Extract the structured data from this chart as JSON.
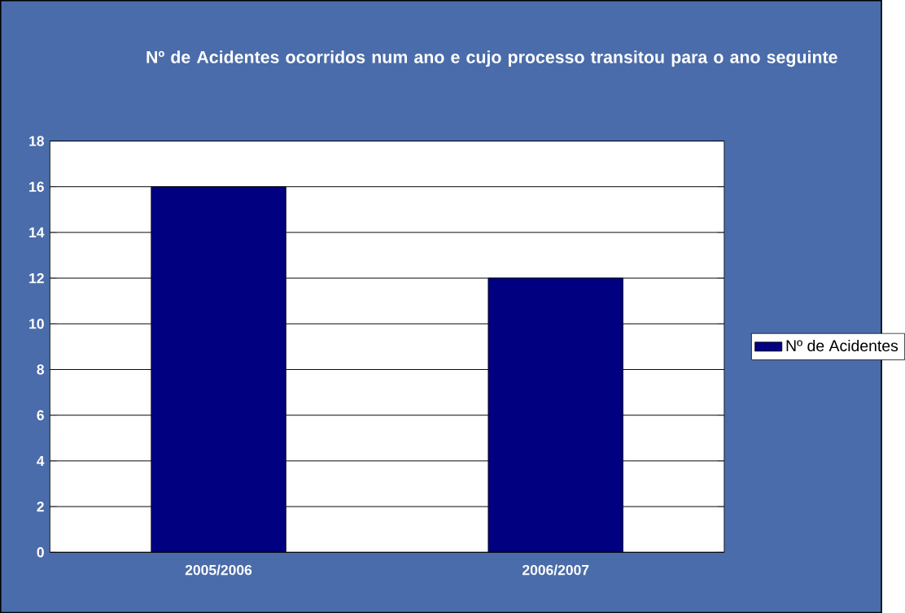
{
  "chart_data": {
    "type": "bar",
    "title": "Nº de Acidentes ocorridos num ano e cujo processo transitou para o ano seguinte",
    "categories": [
      "2005/2006",
      "2006/2007"
    ],
    "series": [
      {
        "name": "Nº de Acidentes",
        "color": "#000080",
        "values": [
          16,
          12
        ]
      }
    ],
    "ylim": [
      0,
      18
    ],
    "yticks": [
      0,
      2,
      4,
      6,
      8,
      10,
      12,
      14,
      16,
      18
    ],
    "grid": "y",
    "legend": "right"
  }
}
